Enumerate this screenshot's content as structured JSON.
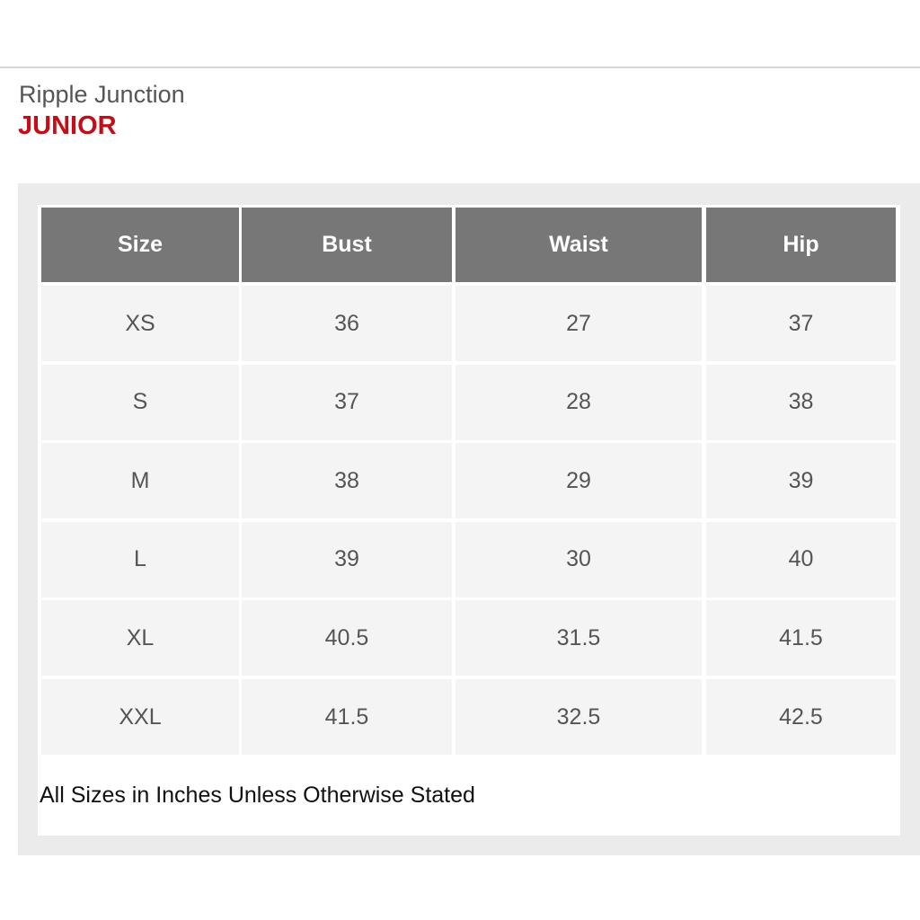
{
  "brand": "Ripple Junction",
  "category": "JUNIOR",
  "table": {
    "header": [
      "Size",
      "Bust",
      "Waist",
      "Hip"
    ],
    "rows": [
      [
        "XS",
        "36",
        "27",
        "37"
      ],
      [
        "S",
        "37",
        "28",
        "38"
      ],
      [
        "M",
        "38",
        "29",
        "39"
      ],
      [
        "L",
        "39",
        "30",
        "40"
      ],
      [
        "XL",
        "40.5",
        "31.5",
        "41.5"
      ],
      [
        "XXL",
        "41.5",
        "32.5",
        "42.5"
      ]
    ]
  },
  "note": "All Sizes in Inches Unless Otherwise Stated"
}
